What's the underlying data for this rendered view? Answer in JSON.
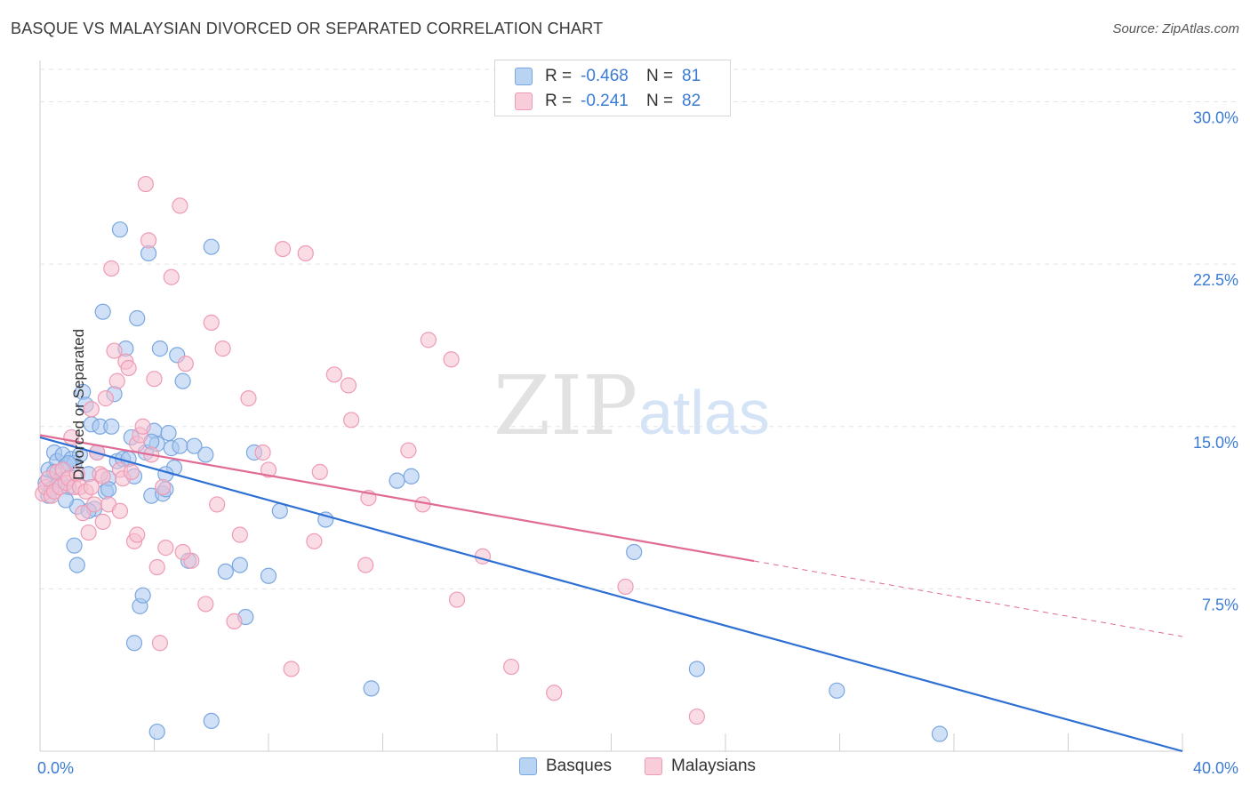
{
  "title": "BASQUE VS MALAYSIAN DIVORCED OR SEPARATED CORRELATION CHART",
  "source": "Source: ZipAtlas.com",
  "watermark": {
    "zip": "ZIP",
    "atlas": "atlas"
  },
  "legend_top": {
    "rows": [
      {
        "r_label": "R =",
        "r_value": "-0.468",
        "n_label": "N =",
        "n_value": "81"
      },
      {
        "r_label": "R =",
        "r_value": "-0.241",
        "n_label": "N =",
        "n_value": "82"
      }
    ]
  },
  "legend_bottom": [
    "Basques",
    "Malaysians"
  ],
  "colors": {
    "basques_fill": "#a9c8f0",
    "basques_stroke": "#7aa7e0",
    "basques_line": "#2e6fd4",
    "malaysians_fill": "#f6bfd0",
    "malaysians_stroke": "#ee9bb6",
    "malaysians_line": "#e06c96",
    "tick_label": "#3a7bd5",
    "grid": "#e3e3e3"
  },
  "chart_data": {
    "type": "scatter",
    "title": "BASQUE VS MALAYSIAN DIVORCED OR SEPARATED CORRELATION CHART",
    "xlabel": "",
    "ylabel": "Divorced or Separated",
    "xlim": [
      0,
      40
    ],
    "ylim": [
      0,
      31.5
    ],
    "x_tick_labels": [
      "0.0%",
      "40.0%"
    ],
    "y_ticks": [
      7.5,
      15.0,
      22.5,
      30.0
    ],
    "y_tick_labels": [
      "7.5%",
      "15.0%",
      "22.5%",
      "30.0%"
    ],
    "grid": true,
    "legend_position": "top-center",
    "series": [
      {
        "name": "Basques",
        "points": [
          [
            0.2,
            12.4
          ],
          [
            0.3,
            13.0
          ],
          [
            0.4,
            12.1
          ],
          [
            0.5,
            13.8
          ],
          [
            0.6,
            13.4
          ],
          [
            0.7,
            12.5
          ],
          [
            0.8,
            13.7
          ],
          [
            0.9,
            13.2
          ],
          [
            1.0,
            12.2
          ],
          [
            1.1,
            13.5
          ],
          [
            1.2,
            13.3
          ],
          [
            1.3,
            11.3
          ],
          [
            1.4,
            13.7
          ],
          [
            1.5,
            16.6
          ],
          [
            1.6,
            16.0
          ],
          [
            1.7,
            12.8
          ],
          [
            1.8,
            15.1
          ],
          [
            1.9,
            11.2
          ],
          [
            2.0,
            13.8
          ],
          [
            2.1,
            15.0
          ],
          [
            2.2,
            20.3
          ],
          [
            2.3,
            12.0
          ],
          [
            2.4,
            12.6
          ],
          [
            2.5,
            15.0
          ],
          [
            2.6,
            16.5
          ],
          [
            2.7,
            13.4
          ],
          [
            2.8,
            24.1
          ],
          [
            2.9,
            13.5
          ],
          [
            3.0,
            18.6
          ],
          [
            3.1,
            13.5
          ],
          [
            3.2,
            14.5
          ],
          [
            3.3,
            12.7
          ],
          [
            3.4,
            20.0
          ],
          [
            3.5,
            6.7
          ],
          [
            3.6,
            7.2
          ],
          [
            3.7,
            13.8
          ],
          [
            3.8,
            23.0
          ],
          [
            3.9,
            11.8
          ],
          [
            4.0,
            14.8
          ],
          [
            4.1,
            14.2
          ],
          [
            4.2,
            18.6
          ],
          [
            4.3,
            11.9
          ],
          [
            4.4,
            12.1
          ],
          [
            4.5,
            14.7
          ],
          [
            4.6,
            14.0
          ],
          [
            4.7,
            13.1
          ],
          [
            4.8,
            18.3
          ],
          [
            4.9,
            14.1
          ],
          [
            5.0,
            17.1
          ],
          [
            5.2,
            8.8
          ],
          [
            5.4,
            14.1
          ],
          [
            6.0,
            23.3
          ],
          [
            6.5,
            8.3
          ],
          [
            7.0,
            8.6
          ],
          [
            7.2,
            6.2
          ],
          [
            7.5,
            13.8
          ],
          [
            8.0,
            8.1
          ],
          [
            8.4,
            11.1
          ],
          [
            10.0,
            10.7
          ],
          [
            11.6,
            2.9
          ],
          [
            12.5,
            12.5
          ],
          [
            13.0,
            12.7
          ],
          [
            20.8,
            9.2
          ],
          [
            23.0,
            3.8
          ],
          [
            27.9,
            2.8
          ],
          [
            31.5,
            0.8
          ],
          [
            1.2,
            9.5
          ],
          [
            1.3,
            8.6
          ],
          [
            3.3,
            5.0
          ],
          [
            4.1,
            0.9
          ],
          [
            6.0,
            1.4
          ],
          [
            0.3,
            11.8
          ],
          [
            0.6,
            12.3
          ],
          [
            0.9,
            11.6
          ],
          [
            1.7,
            11.1
          ],
          [
            2.4,
            12.1
          ],
          [
            3.9,
            14.3
          ],
          [
            4.4,
            12.8
          ],
          [
            5.8,
            13.7
          ],
          [
            1.0,
            13.3
          ],
          [
            0.5,
            12.9
          ]
        ]
      },
      {
        "name": "Malaysians",
        "points": [
          [
            0.1,
            11.9
          ],
          [
            0.2,
            12.2
          ],
          [
            0.3,
            12.6
          ],
          [
            0.4,
            11.8
          ],
          [
            0.5,
            12.0
          ],
          [
            0.6,
            12.9
          ],
          [
            0.7,
            12.2
          ],
          [
            0.8,
            13.0
          ],
          [
            0.9,
            12.4
          ],
          [
            1.0,
            12.6
          ],
          [
            1.1,
            14.5
          ],
          [
            1.2,
            12.2
          ],
          [
            1.3,
            12.8
          ],
          [
            1.4,
            12.2
          ],
          [
            1.5,
            11.0
          ],
          [
            1.6,
            12.0
          ],
          [
            1.7,
            10.1
          ],
          [
            1.8,
            12.2
          ],
          [
            1.9,
            11.4
          ],
          [
            2.0,
            13.8
          ],
          [
            2.1,
            12.8
          ],
          [
            2.2,
            10.6
          ],
          [
            2.3,
            16.3
          ],
          [
            2.4,
            11.4
          ],
          [
            2.5,
            22.3
          ],
          [
            2.6,
            18.5
          ],
          [
            2.7,
            17.1
          ],
          [
            2.8,
            13.0
          ],
          [
            2.9,
            12.6
          ],
          [
            3.0,
            18.0
          ],
          [
            3.1,
            17.7
          ],
          [
            3.2,
            12.9
          ],
          [
            3.3,
            9.7
          ],
          [
            3.4,
            14.2
          ],
          [
            3.5,
            14.6
          ],
          [
            3.6,
            15.0
          ],
          [
            3.7,
            26.2
          ],
          [
            3.8,
            23.6
          ],
          [
            3.9,
            13.7
          ],
          [
            4.0,
            17.2
          ],
          [
            4.1,
            8.5
          ],
          [
            4.2,
            5.0
          ],
          [
            4.3,
            12.2
          ],
          [
            4.4,
            9.4
          ],
          [
            4.6,
            21.9
          ],
          [
            4.9,
            25.2
          ],
          [
            5.1,
            17.9
          ],
          [
            5.3,
            8.8
          ],
          [
            5.8,
            6.8
          ],
          [
            6.0,
            19.8
          ],
          [
            6.4,
            18.6
          ],
          [
            6.8,
            6.0
          ],
          [
            7.0,
            10.0
          ],
          [
            7.3,
            16.3
          ],
          [
            7.8,
            13.8
          ],
          [
            8.5,
            23.2
          ],
          [
            8.8,
            3.8
          ],
          [
            9.3,
            23.0
          ],
          [
            9.6,
            9.7
          ],
          [
            10.3,
            17.4
          ],
          [
            10.8,
            16.9
          ],
          [
            10.9,
            15.3
          ],
          [
            11.4,
            8.6
          ],
          [
            12.9,
            13.9
          ],
          [
            13.4,
            11.4
          ],
          [
            13.6,
            19.0
          ],
          [
            14.4,
            18.1
          ],
          [
            14.6,
            7.0
          ],
          [
            15.5,
            9.0
          ],
          [
            16.5,
            3.9
          ],
          [
            18.0,
            2.7
          ],
          [
            20.5,
            7.6
          ],
          [
            23.0,
            1.6
          ],
          [
            1.8,
            15.8
          ],
          [
            2.2,
            12.7
          ],
          [
            2.8,
            11.1
          ],
          [
            3.4,
            10.0
          ],
          [
            5.0,
            9.2
          ],
          [
            6.2,
            11.4
          ],
          [
            8.0,
            13.0
          ],
          [
            9.8,
            12.9
          ],
          [
            11.5,
            11.7
          ]
        ]
      }
    ],
    "trend_lines": [
      {
        "name": "Basques",
        "x": [
          0,
          40
        ],
        "y": [
          14.5,
          0.0
        ],
        "dashed_from": null
      },
      {
        "name": "Malaysians",
        "x": [
          0,
          40
        ],
        "y": [
          14.6,
          5.3
        ],
        "dashed_from": 25
      }
    ]
  }
}
